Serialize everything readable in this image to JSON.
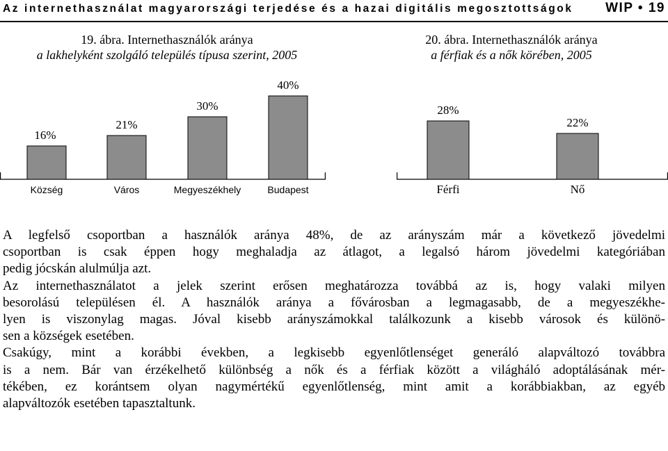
{
  "header": {
    "title": "Az internethasználat magyarországi terjedése és a hazai digitális megosztottságok",
    "page": "WIP • 19"
  },
  "chart_data": [
    {
      "type": "bar",
      "title": "19. ábra. Internethasználók aránya",
      "subtitle": "a lakhelyként szolgáló település típusa szerint, 2005",
      "categories": [
        "Község",
        "Város",
        "Megyeszékhely",
        "Budapest"
      ],
      "values": [
        16,
        21,
        30,
        40
      ],
      "value_labels": [
        "16%",
        "21%",
        "30%",
        "40%"
      ],
      "ylim": [
        0,
        40
      ],
      "bar_color": "#8c8c8c"
    },
    {
      "type": "bar",
      "title": "20. ábra. Internethasználók aránya",
      "subtitle": "a férfiak és a nők körében, 2005",
      "categories": [
        "Férfi",
        "Nő"
      ],
      "values": [
        28,
        22
      ],
      "value_labels": [
        "28%",
        "22%"
      ],
      "ylim": [
        0,
        28
      ],
      "bar_color": "#8c8c8c"
    }
  ],
  "body": {
    "lines": [
      "A legfelső csoportban a használók aránya 48%, de az arányszám már a következő jövedelmi",
      "csoportban is csak éppen hogy meghaladja az átlagot, a legalsó három jövedelmi kategóriában",
      "pedig jócskán alulmúlja azt.",
      "Az internethasználatot a jelek szerint erősen meghatározza továbbá az is, hogy valaki milyen",
      "besorolású településen él. A használók aránya a fővárosban a legmagasabb, de a megyeszékhe-",
      "lyen is viszonylag magas. Jóval kisebb arányszámokkal találkozunk a kisebb városok és különö-",
      "sen a községek esetében.",
      "Csakúgy, mint a korábbi években, a legkisebb egyenlőtlenséget generáló alapváltozó továbbra",
      "is a nem. Bár van érzékelhető különbség a nők és a férfiak között a világháló adoptálásának mér-",
      "tékében, ez korántsem olyan nagymértékű egyenlőtlenség, mint amit a korábbiakban, az egyéb",
      "alapváltozók esetében tapasztaltunk."
    ]
  }
}
